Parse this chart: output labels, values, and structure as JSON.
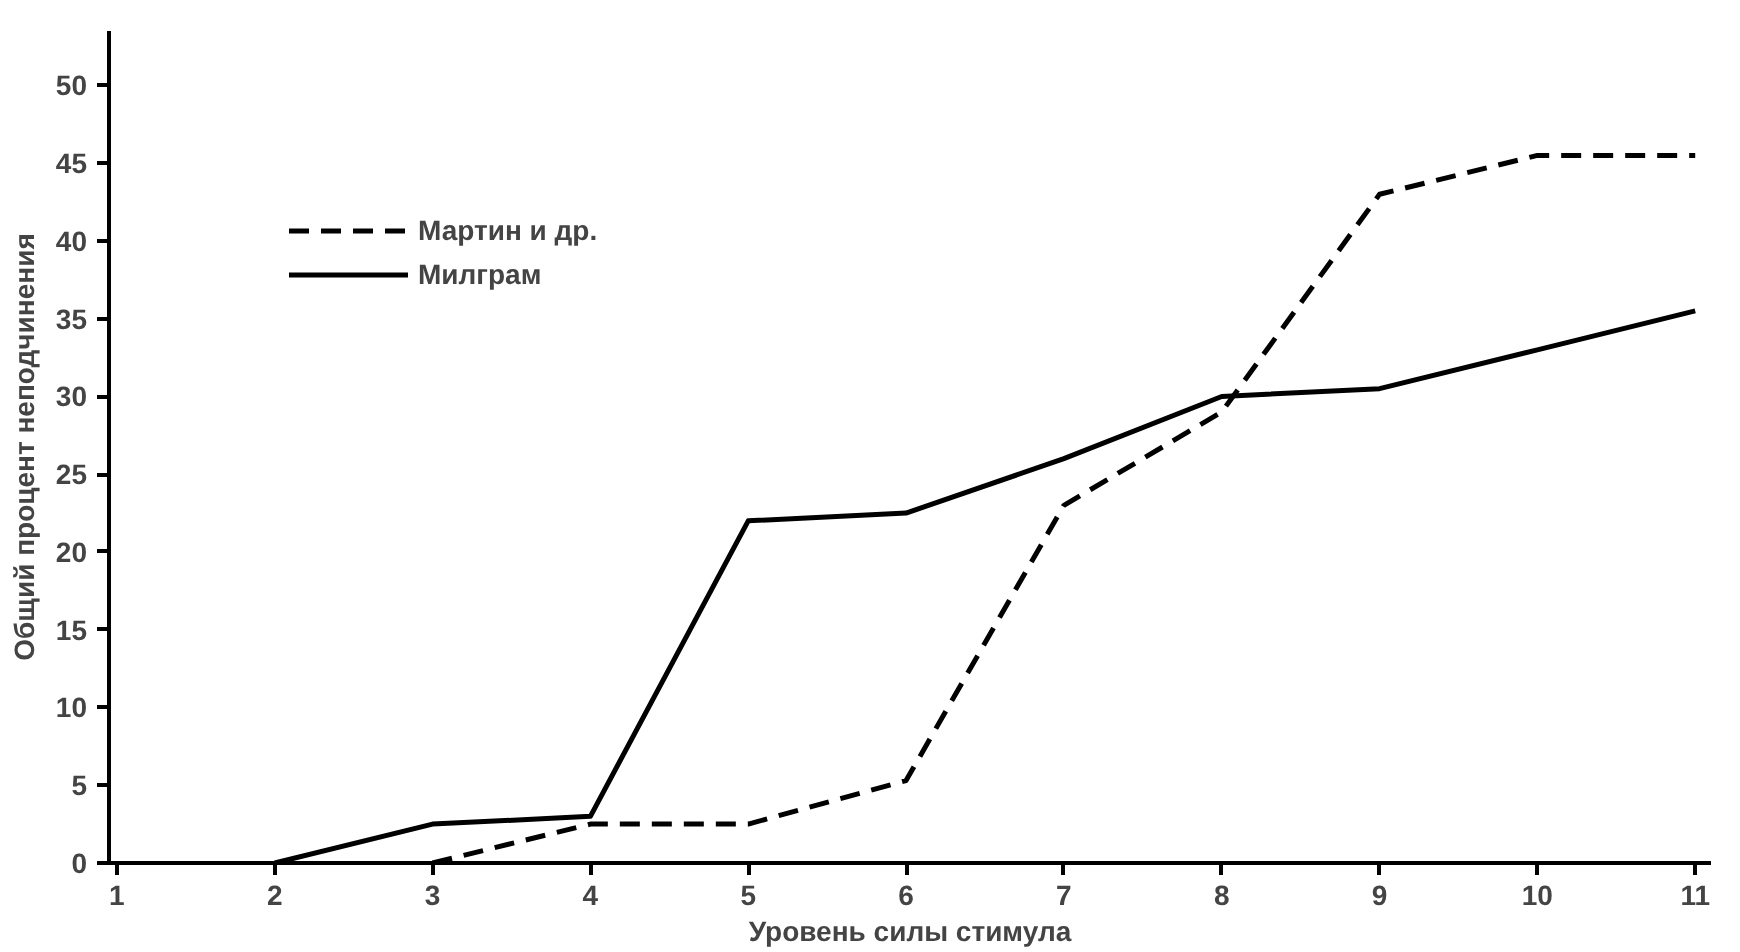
{
  "chart_data": {
    "type": "line",
    "xlabel": "Уровень силы стимула",
    "ylabel": "Общий процент неподчинения",
    "xlim": [
      0.95,
      11.1
    ],
    "ylim": [
      0,
      53.5
    ],
    "xticks": [
      1,
      2,
      3,
      4,
      5,
      6,
      7,
      8,
      9,
      10,
      11
    ],
    "yticks": [
      0,
      5,
      10,
      15,
      20,
      25,
      30,
      35,
      40,
      45,
      50
    ],
    "grid": false,
    "legend": "top left",
    "marker": "none",
    "series": [
      {
        "name": "Мартин и др.",
        "color": "#000000",
        "line_style": "dashed",
        "x": [
          3,
          4,
          5,
          6,
          7,
          8,
          9,
          10,
          11
        ],
        "values": [
          0,
          2.5,
          2.5,
          5.3,
          23,
          29,
          43,
          45.5,
          45.5
        ]
      },
      {
        "name": "Милграм",
        "color": "#000000",
        "line_style": "solid",
        "x": [
          2,
          3,
          4,
          5,
          6,
          7,
          8,
          9,
          10,
          11
        ],
        "values": [
          0,
          2.5,
          3,
          22,
          22.5,
          26,
          30,
          30.5,
          33,
          35.5
        ]
      }
    ]
  }
}
